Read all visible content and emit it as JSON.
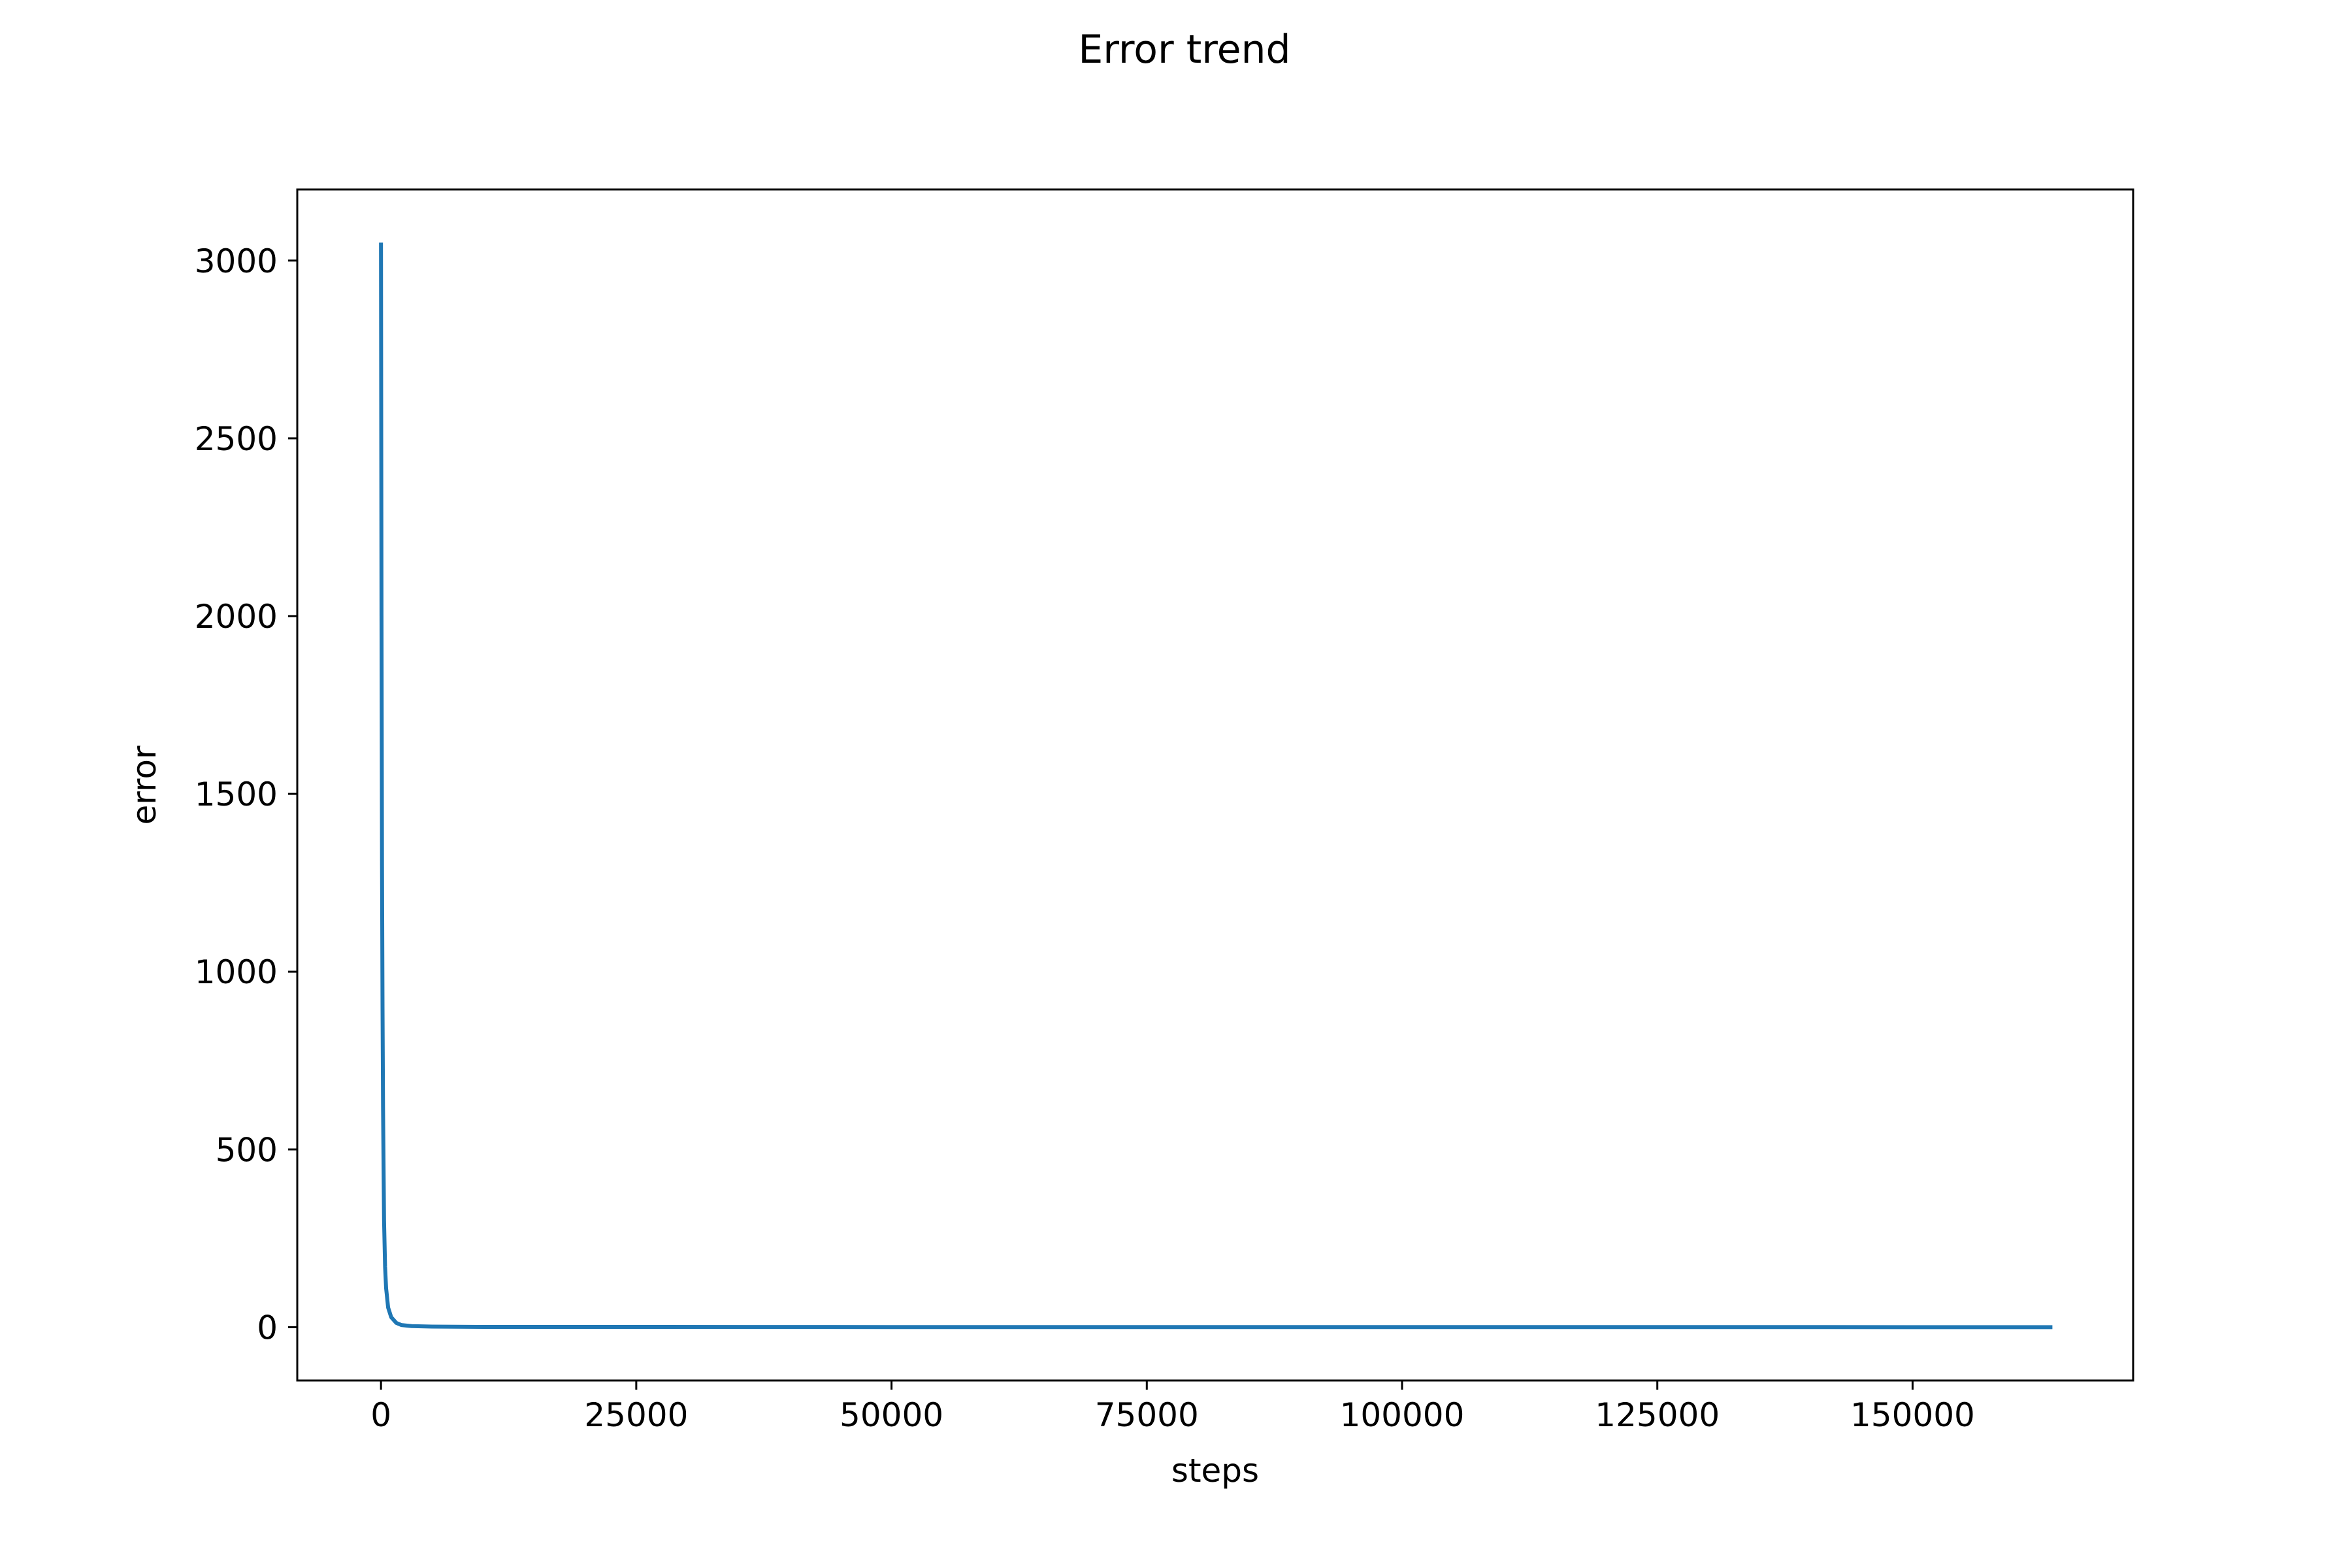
{
  "chart_data": {
    "type": "line",
    "title": "Error trend",
    "xlabel": "steps",
    "ylabel": "error",
    "xlim": [
      -8200,
      171600
    ],
    "ylim": [
      -150,
      3200
    ],
    "xticks": [
      0,
      25000,
      50000,
      75000,
      100000,
      125000,
      150000
    ],
    "xtick_labels": [
      "0",
      "25000",
      "50000",
      "75000",
      "100000",
      "125000",
      "150000"
    ],
    "yticks": [
      0,
      500,
      1000,
      1500,
      2000,
      2500,
      3000
    ],
    "ytick_labels": [
      "0",
      "500",
      "1000",
      "1500",
      "2000",
      "2500",
      "3000"
    ],
    "grid": false,
    "series": [
      {
        "color": "#1f77b4",
        "x": [
          0,
          20,
          50,
          100,
          150,
          200,
          300,
          400,
          500,
          700,
          1000,
          1500,
          2000,
          3000,
          5000,
          10000,
          50000,
          100000,
          150000,
          163500
        ],
        "y": [
          3045,
          2600,
          2000,
          1300,
          900,
          620,
          300,
          170,
          110,
          55,
          28,
          12,
          6,
          3,
          1.5,
          0.8,
          0.3,
          0.2,
          0.1,
          0.1
        ]
      }
    ]
  }
}
